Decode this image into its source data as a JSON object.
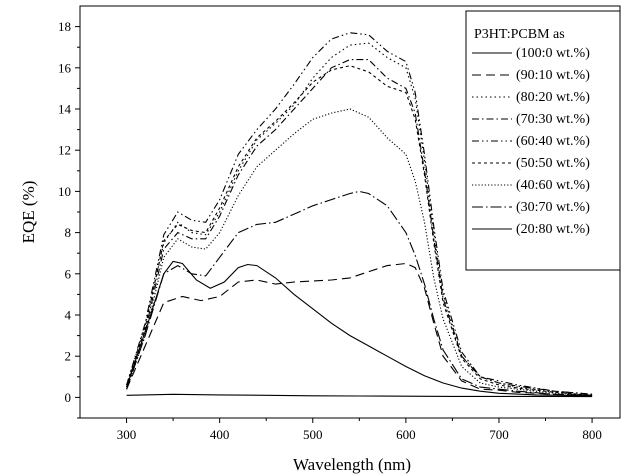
{
  "chart_data": {
    "type": "line",
    "xlabel": "Wavelength (nm)",
    "ylabel": "EQE (%)",
    "xlim": [
      250,
      830
    ],
    "ylim": [
      -1,
      19
    ],
    "xticks": [
      300,
      400,
      500,
      600,
      700,
      800
    ],
    "yticks": [
      0,
      2,
      4,
      6,
      8,
      10,
      12,
      14,
      16,
      18
    ],
    "grid": false,
    "legend_title": "P3HT:PCBM as",
    "legend_position": "top-right",
    "series": [
      {
        "name": "(100:0 wt.%)",
        "dash": "solid",
        "points": [
          [
            300,
            0.1
          ],
          [
            350,
            0.15
          ],
          [
            400,
            0.12
          ],
          [
            450,
            0.1
          ],
          [
            500,
            0.08
          ],
          [
            550,
            0.07
          ],
          [
            600,
            0.06
          ],
          [
            650,
            0.05
          ],
          [
            700,
            0.05
          ],
          [
            750,
            0.05
          ],
          [
            800,
            0.04
          ]
        ]
      },
      {
        "name": "(90:10 wt.%)",
        "dash": "longdash",
        "points": [
          [
            300,
            0.4
          ],
          [
            320,
            2.5
          ],
          [
            340,
            4.6
          ],
          [
            360,
            4.9
          ],
          [
            380,
            4.7
          ],
          [
            400,
            4.9
          ],
          [
            420,
            5.6
          ],
          [
            440,
            5.7
          ],
          [
            460,
            5.5
          ],
          [
            480,
            5.6
          ],
          [
            500,
            5.65
          ],
          [
            520,
            5.7
          ],
          [
            540,
            5.8
          ],
          [
            560,
            6.1
          ],
          [
            580,
            6.4
          ],
          [
            600,
            6.5
          ],
          [
            610,
            6.3
          ],
          [
            620,
            5.3
          ],
          [
            630,
            3.6
          ],
          [
            640,
            2.0
          ],
          [
            660,
            0.8
          ],
          [
            680,
            0.4
          ],
          [
            700,
            0.35
          ],
          [
            720,
            0.25
          ],
          [
            760,
            0.15
          ],
          [
            800,
            0.1
          ]
        ]
      },
      {
        "name": "(80:20 wt.%)",
        "dash": "dot-sparse",
        "points": [
          [
            300,
            0.6
          ],
          [
            320,
            3.5
          ],
          [
            340,
            7.5
          ],
          [
            355,
            8.5
          ],
          [
            370,
            8.0
          ],
          [
            385,
            7.9
          ],
          [
            400,
            9.0
          ],
          [
            420,
            11.0
          ],
          [
            440,
            12.5
          ],
          [
            460,
            13.3
          ],
          [
            480,
            14.2
          ],
          [
            500,
            15.5
          ],
          [
            520,
            16.5
          ],
          [
            540,
            17.1
          ],
          [
            560,
            17.2
          ],
          [
            580,
            16.5
          ],
          [
            600,
            16.0
          ],
          [
            610,
            14.5
          ],
          [
            620,
            11.5
          ],
          [
            630,
            8.0
          ],
          [
            640,
            5.0
          ],
          [
            660,
            2.0
          ],
          [
            680,
            1.0
          ],
          [
            700,
            0.7
          ],
          [
            720,
            0.5
          ],
          [
            760,
            0.25
          ],
          [
            800,
            0.1
          ]
        ]
      },
      {
        "name": "(70:30 wt.%)",
        "dash": "dashdot",
        "points": [
          [
            300,
            0.5
          ],
          [
            320,
            3.2
          ],
          [
            340,
            7.2
          ],
          [
            355,
            8.0
          ],
          [
            370,
            7.7
          ],
          [
            385,
            7.7
          ],
          [
            400,
            8.8
          ],
          [
            420,
            10.8
          ],
          [
            440,
            12.2
          ],
          [
            460,
            13.0
          ],
          [
            480,
            14.0
          ],
          [
            500,
            15.0
          ],
          [
            520,
            16.0
          ],
          [
            540,
            16.4
          ],
          [
            560,
            16.4
          ],
          [
            580,
            15.5
          ],
          [
            600,
            15.0
          ],
          [
            610,
            13.8
          ],
          [
            620,
            11.0
          ],
          [
            630,
            7.7
          ],
          [
            640,
            4.8
          ],
          [
            660,
            2.0
          ],
          [
            680,
            1.0
          ],
          [
            700,
            0.7
          ],
          [
            720,
            0.55
          ],
          [
            760,
            0.3
          ],
          [
            800,
            0.15
          ]
        ]
      },
      {
        "name": "(60:40 wt.%)",
        "dash": "dashdotdot",
        "points": [
          [
            300,
            0.6
          ],
          [
            320,
            3.6
          ],
          [
            340,
            7.9
          ],
          [
            355,
            9.0
          ],
          [
            370,
            8.6
          ],
          [
            385,
            8.5
          ],
          [
            400,
            9.6
          ],
          [
            420,
            11.8
          ],
          [
            440,
            13.0
          ],
          [
            460,
            14.0
          ],
          [
            480,
            15.2
          ],
          [
            500,
            16.5
          ],
          [
            520,
            17.4
          ],
          [
            540,
            17.7
          ],
          [
            560,
            17.6
          ],
          [
            580,
            16.8
          ],
          [
            600,
            16.3
          ],
          [
            610,
            14.8
          ],
          [
            620,
            11.8
          ],
          [
            630,
            8.3
          ],
          [
            640,
            5.2
          ],
          [
            660,
            2.2
          ],
          [
            680,
            1.0
          ],
          [
            700,
            0.8
          ],
          [
            720,
            0.6
          ],
          [
            760,
            0.3
          ],
          [
            800,
            0.15
          ]
        ]
      },
      {
        "name": "(50:50 wt.%)",
        "dash": "shortdash",
        "points": [
          [
            300,
            0.5
          ],
          [
            320,
            3.4
          ],
          [
            340,
            7.6
          ],
          [
            355,
            8.4
          ],
          [
            370,
            8.1
          ],
          [
            385,
            8.0
          ],
          [
            400,
            9.2
          ],
          [
            420,
            11.2
          ],
          [
            440,
            12.6
          ],
          [
            460,
            13.4
          ],
          [
            480,
            14.3
          ],
          [
            500,
            15.3
          ],
          [
            520,
            15.9
          ],
          [
            540,
            16.1
          ],
          [
            560,
            15.8
          ],
          [
            580,
            15.1
          ],
          [
            600,
            14.8
          ],
          [
            610,
            13.5
          ],
          [
            620,
            10.8
          ],
          [
            630,
            7.5
          ],
          [
            640,
            4.6
          ],
          [
            660,
            1.9
          ],
          [
            680,
            0.9
          ],
          [
            700,
            0.6
          ],
          [
            720,
            0.45
          ],
          [
            760,
            0.25
          ],
          [
            800,
            0.1
          ]
        ]
      },
      {
        "name": "(40:60 wt.%)",
        "dash": "dot",
        "points": [
          [
            300,
            0.4
          ],
          [
            320,
            3.0
          ],
          [
            340,
            6.8
          ],
          [
            355,
            7.7
          ],
          [
            370,
            7.3
          ],
          [
            385,
            7.2
          ],
          [
            400,
            8.0
          ],
          [
            420,
            9.8
          ],
          [
            440,
            11.2
          ],
          [
            460,
            12.0
          ],
          [
            480,
            12.8
          ],
          [
            500,
            13.5
          ],
          [
            520,
            13.8
          ],
          [
            540,
            14.0
          ],
          [
            560,
            13.6
          ],
          [
            580,
            12.6
          ],
          [
            600,
            11.8
          ],
          [
            610,
            10.5
          ],
          [
            620,
            8.5
          ],
          [
            630,
            5.8
          ],
          [
            640,
            3.8
          ],
          [
            660,
            1.5
          ],
          [
            680,
            0.7
          ],
          [
            700,
            0.5
          ],
          [
            720,
            0.4
          ],
          [
            760,
            0.2
          ],
          [
            800,
            0.1
          ]
        ]
      },
      {
        "name": "(30:70 wt.%)",
        "dash": "longdashdot",
        "points": [
          [
            300,
            0.4
          ],
          [
            320,
            3.0
          ],
          [
            340,
            6.0
          ],
          [
            355,
            6.4
          ],
          [
            370,
            6.0
          ],
          [
            385,
            5.9
          ],
          [
            400,
            6.8
          ],
          [
            420,
            8.0
          ],
          [
            440,
            8.4
          ],
          [
            460,
            8.5
          ],
          [
            480,
            8.9
          ],
          [
            500,
            9.3
          ],
          [
            520,
            9.6
          ],
          [
            540,
            9.9
          ],
          [
            550,
            10.0
          ],
          [
            560,
            9.9
          ],
          [
            580,
            9.3
          ],
          [
            600,
            8.0
          ],
          [
            610,
            6.9
          ],
          [
            620,
            5.5
          ],
          [
            630,
            3.8
          ],
          [
            640,
            2.3
          ],
          [
            660,
            0.9
          ],
          [
            680,
            0.5
          ],
          [
            700,
            0.4
          ],
          [
            720,
            0.3
          ],
          [
            760,
            0.15
          ],
          [
            800,
            0.1
          ]
        ]
      },
      {
        "name": "(20:80 wt.%)",
        "dash": "solid",
        "points": [
          [
            300,
            0.5
          ],
          [
            320,
            3.2
          ],
          [
            340,
            6.0
          ],
          [
            350,
            6.6
          ],
          [
            360,
            6.5
          ],
          [
            375,
            5.7
          ],
          [
            390,
            5.3
          ],
          [
            405,
            5.6
          ],
          [
            420,
            6.3
          ],
          [
            430,
            6.45
          ],
          [
            440,
            6.4
          ],
          [
            460,
            5.8
          ],
          [
            480,
            5.0
          ],
          [
            500,
            4.3
          ],
          [
            520,
            3.6
          ],
          [
            540,
            3.0
          ],
          [
            560,
            2.5
          ],
          [
            580,
            2.0
          ],
          [
            600,
            1.5
          ],
          [
            620,
            1.05
          ],
          [
            640,
            0.7
          ],
          [
            660,
            0.45
          ],
          [
            680,
            0.3
          ],
          [
            700,
            0.2
          ],
          [
            740,
            0.12
          ],
          [
            800,
            0.08
          ]
        ]
      }
    ]
  }
}
